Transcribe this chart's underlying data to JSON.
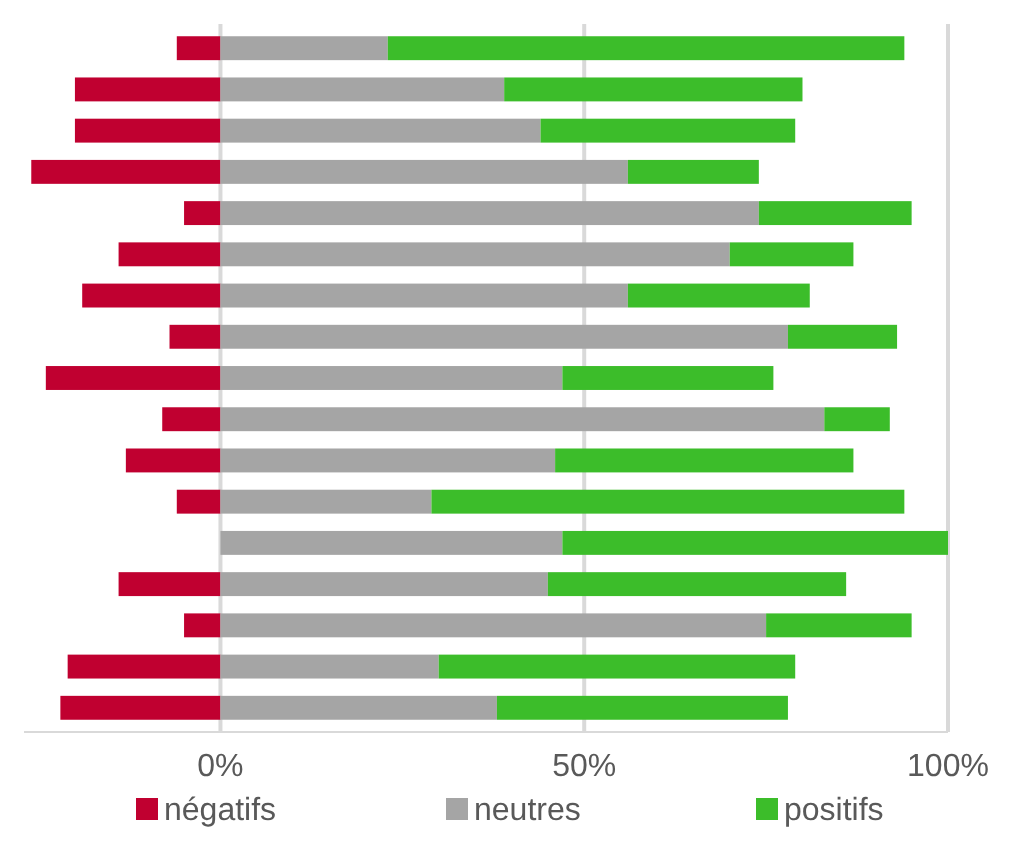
{
  "chart_data": {
    "type": "bar",
    "orientation": "horizontal",
    "stacked": true,
    "categories": [
      null,
      null,
      null,
      null,
      null,
      null,
      null,
      null,
      null,
      null,
      null,
      null,
      null,
      null,
      null,
      null,
      null
    ],
    "series": [
      {
        "name": "négatifs",
        "color": "#c00030",
        "values": [
          -6,
          -20,
          -20,
          -26,
          -5,
          -14,
          -19,
          -7,
          -24,
          -8,
          -13,
          -6,
          0,
          -14,
          -5,
          -21,
          -22
        ]
      },
      {
        "name": "neutres",
        "color": "#a5a5a5",
        "values": [
          23,
          39,
          44,
          56,
          74,
          70,
          56,
          78,
          47,
          83,
          46,
          29,
          47,
          45,
          75,
          30,
          38
        ]
      },
      {
        "name": "positifs",
        "color": "#3cbd2a",
        "values": [
          71,
          41,
          35,
          18,
          21,
          17,
          25,
          15,
          29,
          9,
          41,
          65,
          53,
          41,
          20,
          49,
          40
        ]
      }
    ],
    "xlim": [
      -27,
      100
    ],
    "xticks": [
      {
        "value": 0,
        "label": "0%"
      },
      {
        "value": 50,
        "label": "50%"
      },
      {
        "value": 100,
        "label": "100%"
      }
    ],
    "grid": "x",
    "legend": "bottom"
  }
}
